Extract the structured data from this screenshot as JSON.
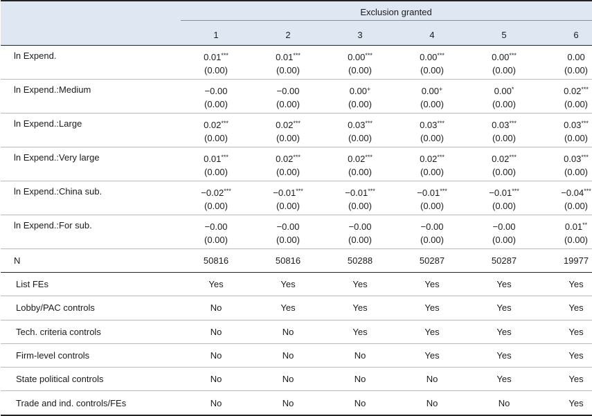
{
  "header": {
    "group_label": "Exclusion granted",
    "columns": [
      "1",
      "2",
      "3",
      "4",
      "5",
      "6"
    ]
  },
  "coef_rows": [
    {
      "label": "ln Expend.",
      "cells": [
        {
          "est": "0.01",
          "stars": "***",
          "se": "(0.00)"
        },
        {
          "est": "0.01",
          "stars": "***",
          "se": "(0.00)"
        },
        {
          "est": "0.00",
          "stars": "***",
          "se": "(0.00)"
        },
        {
          "est": "0.00",
          "stars": "***",
          "se": "(0.00)"
        },
        {
          "est": "0.00",
          "stars": "***",
          "se": "(0.00)"
        },
        {
          "est": "0.00",
          "stars": "",
          "se": "(0.00)"
        }
      ]
    },
    {
      "label": "ln Expend.:Medium",
      "cells": [
        {
          "est": "−0.00",
          "stars": "",
          "se": "(0.00)"
        },
        {
          "est": "−0.00",
          "stars": "",
          "se": "(0.00)"
        },
        {
          "est": "0.00",
          "stars": "+",
          "se": "(0.00)"
        },
        {
          "est": "0.00",
          "stars": "+",
          "se": "(0.00)"
        },
        {
          "est": "0.00",
          "stars": "*",
          "se": "(0.00)"
        },
        {
          "est": "0.02",
          "stars": "***",
          "se": "(0.00)"
        }
      ]
    },
    {
      "label": "ln Expend.:Large",
      "cells": [
        {
          "est": "0.02",
          "stars": "***",
          "se": "(0.00)"
        },
        {
          "est": "0.02",
          "stars": "***",
          "se": "(0.00)"
        },
        {
          "est": "0.03",
          "stars": "***",
          "se": "(0.00)"
        },
        {
          "est": "0.03",
          "stars": "***",
          "se": "(0.00)"
        },
        {
          "est": "0.03",
          "stars": "***",
          "se": "(0.00)"
        },
        {
          "est": "0.03",
          "stars": "***",
          "se": "(0.00)"
        }
      ]
    },
    {
      "label": "ln Expend.:Very large",
      "cells": [
        {
          "est": "0.01",
          "stars": "***",
          "se": "(0.00)"
        },
        {
          "est": "0.02",
          "stars": "***",
          "se": "(0.00)"
        },
        {
          "est": "0.02",
          "stars": "***",
          "se": "(0.00)"
        },
        {
          "est": "0.02",
          "stars": "***",
          "se": "(0.00)"
        },
        {
          "est": "0.02",
          "stars": "***",
          "se": "(0.00)"
        },
        {
          "est": "0.03",
          "stars": "***",
          "se": "(0.00)"
        }
      ]
    },
    {
      "label": "ln Expend.:China sub.",
      "cells": [
        {
          "est": "−0.02",
          "stars": "***",
          "se": "(0.00)"
        },
        {
          "est": "−0.01",
          "stars": "***",
          "se": "(0.00)"
        },
        {
          "est": "−0.01",
          "stars": "***",
          "se": "(0.00)"
        },
        {
          "est": "−0.01",
          "stars": "***",
          "se": "(0.00)"
        },
        {
          "est": "−0.01",
          "stars": "***",
          "se": "(0.00)"
        },
        {
          "est": "−0.04",
          "stars": "***",
          "se": "(0.00)"
        }
      ]
    },
    {
      "label": "ln Expend.:For sub.",
      "cells": [
        {
          "est": "−0.00",
          "stars": "",
          "se": "(0.00)"
        },
        {
          "est": "−0.00",
          "stars": "",
          "se": "(0.00)"
        },
        {
          "est": "−0.00",
          "stars": "",
          "se": "(0.00)"
        },
        {
          "est": "−0.00",
          "stars": "",
          "se": "(0.00)"
        },
        {
          "est": "−0.00",
          "stars": "",
          "se": "(0.00)"
        },
        {
          "est": "0.01",
          "stars": "**",
          "se": "(0.00)"
        }
      ]
    }
  ],
  "n_row": {
    "label": "N",
    "values": [
      "50816",
      "50816",
      "50288",
      "50287",
      "50287",
      "19977"
    ]
  },
  "control_rows": [
    {
      "label": "List FEs",
      "values": [
        "Yes",
        "Yes",
        "Yes",
        "Yes",
        "Yes",
        "Yes"
      ]
    },
    {
      "label": "Lobby/PAC controls",
      "values": [
        "No",
        "Yes",
        "Yes",
        "Yes",
        "Yes",
        "Yes"
      ]
    },
    {
      "label": "Tech. criteria controls",
      "values": [
        "No",
        "No",
        "Yes",
        "Yes",
        "Yes",
        "Yes"
      ]
    },
    {
      "label": "Firm-level controls",
      "values": [
        "No",
        "No",
        "No",
        "Yes",
        "Yes",
        "Yes"
      ]
    },
    {
      "label": "State political controls",
      "values": [
        "No",
        "No",
        "No",
        "No",
        "Yes",
        "Yes"
      ]
    },
    {
      "label": "Trade and ind. controls/FEs",
      "values": [
        "No",
        "No",
        "No",
        "No",
        "No",
        "Yes"
      ]
    }
  ]
}
